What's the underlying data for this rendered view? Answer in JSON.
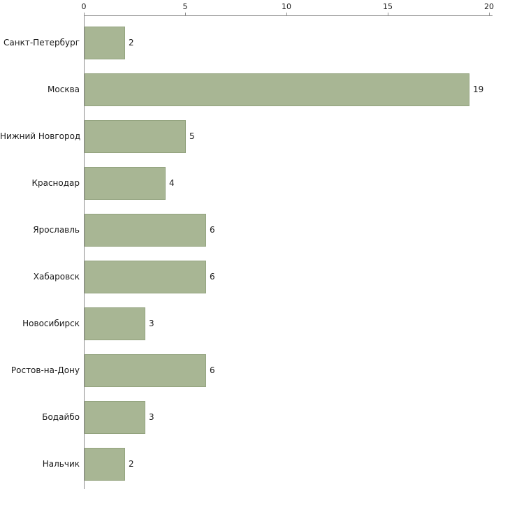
{
  "chart_data": {
    "type": "bar",
    "orientation": "horizontal",
    "title": "",
    "xlabel": "",
    "ylabel": "",
    "categories": [
      "Санкт-Петербург",
      "Москва",
      "Нижний Новгород",
      "Краснодар",
      "Ярославль",
      "Хабаровск",
      "Новосибирск",
      "Ростов-на-Дону",
      "Бодайбо",
      "Нальчик"
    ],
    "values": [
      2,
      19,
      5,
      4,
      6,
      6,
      3,
      6,
      3,
      2
    ],
    "xlim": [
      0,
      20
    ],
    "xticks": [
      0,
      5,
      10,
      15,
      20
    ],
    "grid": false,
    "legend": false,
    "axis_position": "top",
    "bar_color": "#a8b694",
    "bar_border_color": "#93a37e",
    "axis_color": "#8c8c8c",
    "text_color": "#1a1a1a"
  }
}
